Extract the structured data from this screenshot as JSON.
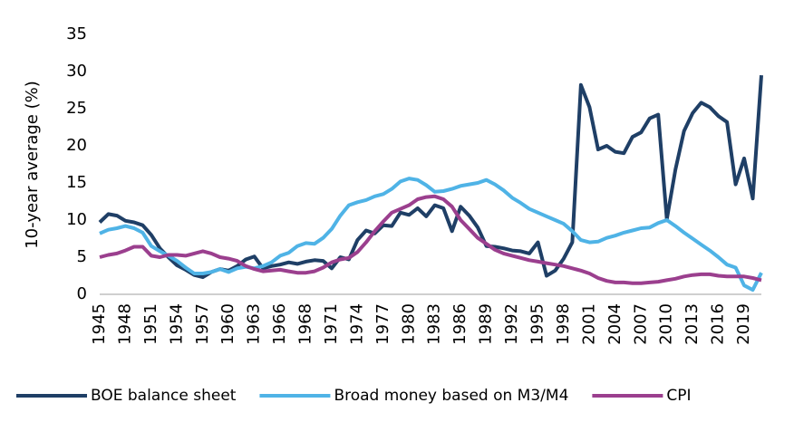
{
  "chart_data": {
    "type": "line",
    "y_label": "10-year average (%)",
    "categories": [
      "1945",
      null,
      null,
      "1948",
      null,
      null,
      "1951",
      null,
      null,
      "1954",
      null,
      null,
      "1957",
      null,
      null,
      "1960",
      null,
      null,
      "1963",
      null,
      null,
      "1966",
      null,
      null,
      "1968",
      null,
      null,
      "1971",
      null,
      null,
      "1974",
      null,
      null,
      "1977",
      null,
      null,
      "1980",
      null,
      null,
      "1983",
      null,
      null,
      "1986",
      null,
      null,
      "1989",
      null,
      null,
      "1992",
      null,
      null,
      "1995",
      null,
      null,
      "1998",
      null,
      null,
      "2001",
      null,
      null,
      "2004",
      null,
      null,
      "2007",
      null,
      null,
      "2010",
      null,
      null,
      "2013",
      null,
      null,
      "2016",
      null,
      null,
      "2019",
      null,
      null
    ],
    "series": [
      {
        "name": "BOE balance sheet",
        "color": "#1f3f66",
        "values": [
          9.7,
          10.8,
          10.6,
          9.9,
          9.7,
          9.3,
          8.0,
          6.2,
          5.0,
          3.9,
          3.3,
          2.6,
          2.3,
          3.0,
          3.4,
          3.2,
          3.8,
          4.7,
          5.1,
          3.5,
          3.8,
          4.0,
          4.3,
          4.1,
          4.4,
          4.6,
          4.5,
          3.5,
          5.0,
          4.7,
          7.3,
          8.6,
          8.2,
          9.3,
          9.2,
          11.0,
          10.7,
          11.6,
          10.5,
          12.0,
          11.6,
          8.5,
          11.8,
          10.6,
          9.0,
          6.5,
          6.4,
          6.2,
          5.9,
          5.8,
          5.5,
          7.0,
          2.5,
          3.2,
          4.8,
          7.0,
          28.2,
          25.2,
          19.5,
          20.0,
          19.2,
          19.0,
          21.2,
          21.8,
          23.7,
          24.2,
          10.1,
          16.8,
          22.0,
          24.4,
          25.8,
          25.2,
          24.0,
          23.2,
          14.8,
          18.3,
          12.9,
          29.5
        ]
      },
      {
        "name": "Broad money based on M3/M4",
        "color": "#4fb3e6",
        "values": [
          8.2,
          8.7,
          8.9,
          9.2,
          8.9,
          8.3,
          6.5,
          5.8,
          5.2,
          4.5,
          3.6,
          2.8,
          2.8,
          3.0,
          3.4,
          3.0,
          3.5,
          3.7,
          3.5,
          3.8,
          4.3,
          5.2,
          5.6,
          6.5,
          6.9,
          6.8,
          7.6,
          8.8,
          10.6,
          12.0,
          12.4,
          12.7,
          13.2,
          13.5,
          14.2,
          15.2,
          15.6,
          15.4,
          14.7,
          13.8,
          13.9,
          14.2,
          14.6,
          14.8,
          15.0,
          15.4,
          14.8,
          14.0,
          13.0,
          12.3,
          11.5,
          11.0,
          10.5,
          10.0,
          9.5,
          8.5,
          7.3,
          7.0,
          7.1,
          7.6,
          7.9,
          8.3,
          8.6,
          8.9,
          9.0,
          9.6,
          10.0,
          9.2,
          8.3,
          7.5,
          6.7,
          5.9,
          5.0,
          4.0,
          3.6,
          1.2,
          0.6,
          2.9
        ]
      },
      {
        "name": "CPI",
        "color": "#9b3f8e",
        "values": [
          5.0,
          5.3,
          5.5,
          5.9,
          6.4,
          6.4,
          5.2,
          5.0,
          5.3,
          5.3,
          5.2,
          5.5,
          5.8,
          5.5,
          5.0,
          4.8,
          4.5,
          3.8,
          3.4,
          3.1,
          3.2,
          3.3,
          3.1,
          2.9,
          2.9,
          3.1,
          3.6,
          4.3,
          4.7,
          4.9,
          5.7,
          7.0,
          8.5,
          9.8,
          11.0,
          11.5,
          12.0,
          12.8,
          13.1,
          13.2,
          12.8,
          11.8,
          10.0,
          8.8,
          7.6,
          6.8,
          6.0,
          5.5,
          5.2,
          4.9,
          4.6,
          4.4,
          4.2,
          4.0,
          3.8,
          3.5,
          3.2,
          2.8,
          2.2,
          1.8,
          1.6,
          1.6,
          1.5,
          1.5,
          1.6,
          1.7,
          1.9,
          2.1,
          2.4,
          2.6,
          2.7,
          2.7,
          2.5,
          2.4,
          2.4,
          2.4,
          2.2,
          1.9
        ]
      }
    ],
    "ylim": [
      0,
      35
    ],
    "yticks": [
      0,
      5,
      10,
      15,
      20,
      25,
      30,
      35
    ],
    "grid": false,
    "legend": "bottom"
  }
}
